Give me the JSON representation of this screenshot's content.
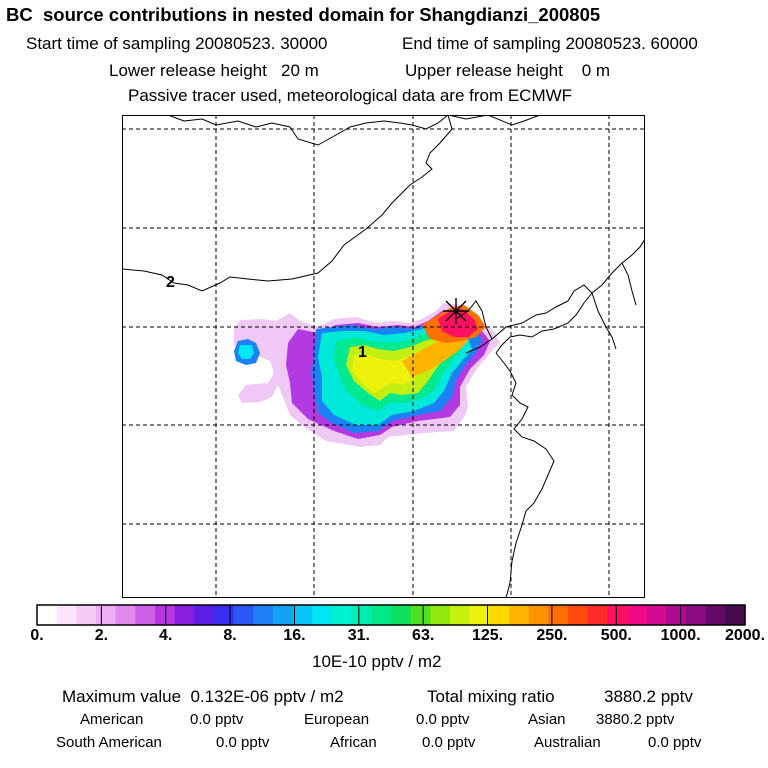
{
  "header": {
    "title": "BC  source contributions in nested domain for Shangdianzi_200805",
    "start": "Start time of sampling 20080523. 30000",
    "end": "End time of sampling 20080523. 60000",
    "lower": "Lower release height   20 m",
    "upper": "Upper release height    0 m",
    "passive": "Passive tracer used, meteorological data are from ECMWF"
  },
  "map": {
    "markers": [
      "1",
      "2"
    ]
  },
  "colorbar": {
    "ticks": [
      "0.",
      "2.",
      "4.",
      "8.",
      "16.",
      "31.",
      "63.",
      "125.",
      "250.",
      "500.",
      "1000.",
      "2000."
    ],
    "units": "10E-10 pptv / m2",
    "colors": [
      "#ffffff",
      "#fbe6fc",
      "#f5ccf8",
      "#eeb0f5",
      "#e08af0",
      "#cc5fe8",
      "#b636e0",
      "#8a1fe0",
      "#5a1ee6",
      "#3b2df0",
      "#2b56f2",
      "#1f7ff4",
      "#14a2f6",
      "#0ac6f8",
      "#00e6f4",
      "#00f0d2",
      "#00ecb0",
      "#00e88a",
      "#10e060",
      "#50e020",
      "#90e810",
      "#c6f010",
      "#eef00e",
      "#ffd800",
      "#ffb400",
      "#ff9400",
      "#ff6e00",
      "#ff4a10",
      "#ff2a2a",
      "#ff1060",
      "#f00a84",
      "#d40a90",
      "#b00a90",
      "#8a0a82",
      "#660a6a",
      "#440a4c"
    ]
  },
  "summary": {
    "max_line": "Maximum value  0.132E-06 pptv / m2",
    "total_label": "Total mixing ratio",
    "total_value": "3880.2 pptv",
    "regions": [
      {
        "name": "American",
        "value": "0.0 pptv"
      },
      {
        "name": "European",
        "value": "0.0 pptv"
      },
      {
        "name": "Asian",
        "value": "3880.2 pptv"
      },
      {
        "name": "South American",
        "value": "0.0 pptv"
      },
      {
        "name": "African",
        "value": "0.0 pptv"
      },
      {
        "name": "Australian",
        "value": "0.0 pptv"
      }
    ]
  }
}
